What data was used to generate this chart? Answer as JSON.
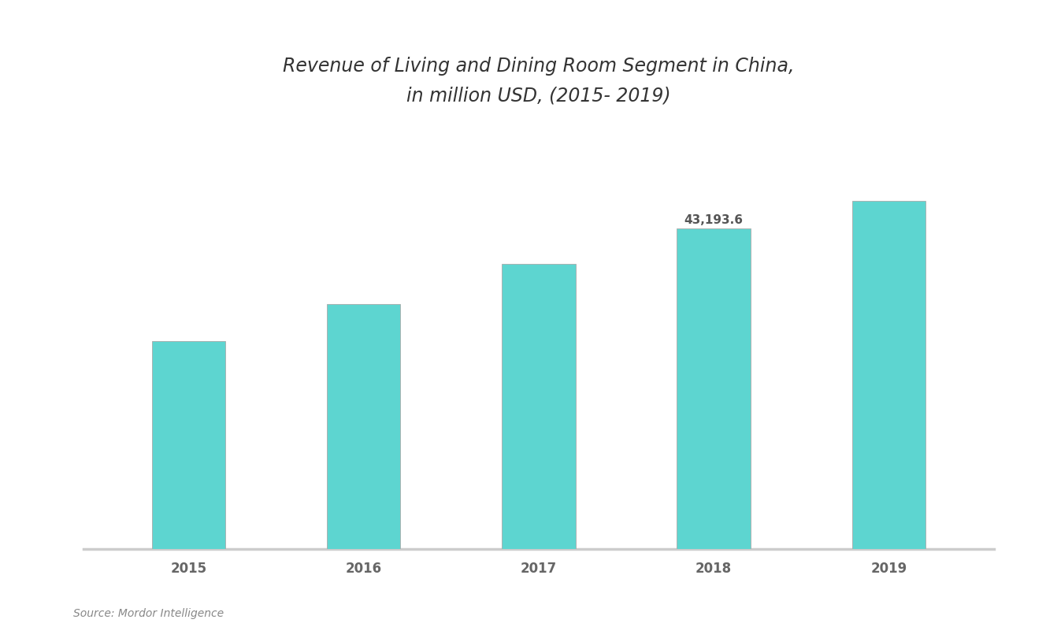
{
  "title_line1": "Revenue of Living and Dining Room Segment in China,",
  "title_line2": "in million USD, (2015- 2019)",
  "categories": [
    "2015",
    "2016",
    "2017",
    "2018",
    "2019"
  ],
  "values": [
    28000,
    33000,
    38500,
    43194,
    47000
  ],
  "bar_color": "#5DD5D0",
  "bar_edge_color": "#aaaaaa",
  "annotation_index": 3,
  "annotation_text": "43,193.6",
  "annotation_color": "#555555",
  "background_color": "#ffffff",
  "plot_bg_color": "#ffffff",
  "title_color": "#333333",
  "tick_color": "#666666",
  "axis_line_color": "#cccccc",
  "source_text": "Source: Mordor Intelligence",
  "source_color": "#888888",
  "ylim": [
    0,
    56000
  ],
  "bar_width": 0.42,
  "title_fontsize": 17,
  "tick_fontsize": 12,
  "source_fontsize": 10,
  "annotation_fontsize": 11
}
